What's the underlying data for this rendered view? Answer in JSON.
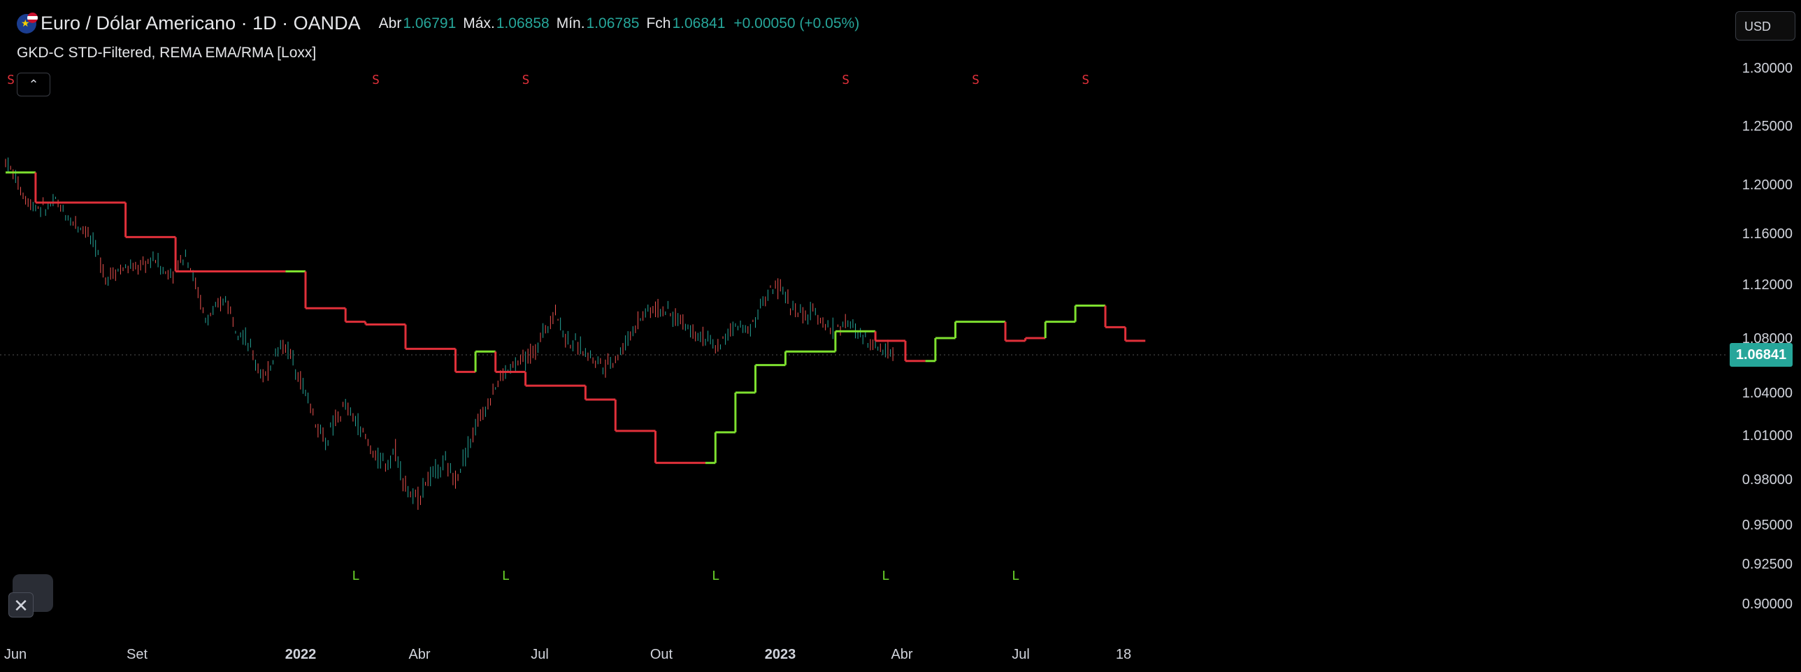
{
  "header": {
    "symbol": "Euro / Dólar Americano · 1D · OANDA",
    "ohlc": [
      {
        "label": "Abr",
        "value": "1.06791"
      },
      {
        "label": "Máx.",
        "value": "1.06858"
      },
      {
        "label": "Mín.",
        "value": "1.06785"
      },
      {
        "label": "Fch",
        "value": "1.06841"
      }
    ],
    "change": "+0.00050 (+0.05%)"
  },
  "indicator": {
    "name": "GKD-C STD-Filtered, REMA EMA/RMA [Loxx]"
  },
  "toolbar": {
    "collapse_icon": "chevron-up-icon",
    "currency": "USD",
    "close_icon": "close-icon"
  },
  "colors": {
    "up": "#26a69a",
    "down": "#ef5350",
    "rema_up": "#7ee02f",
    "rema_down": "#e0303a",
    "bg": "#000000"
  },
  "last_price": "1.06841",
  "chart_data": {
    "type": "line",
    "y_axis_ticks": [
      "1.30000",
      "1.25000",
      "1.20000",
      "1.16000",
      "1.12000",
      "1.08000",
      "1.04000",
      "1.01000",
      "0.98000",
      "0.95000",
      "0.92500",
      "0.90000"
    ],
    "x_axis_ticks": [
      "Jun",
      "Set",
      "2022",
      "Abr",
      "Jul",
      "Out",
      "2023",
      "Abr",
      "Jul",
      "18"
    ],
    "price_series": {
      "name": "",
      "points": [
        [
          0,
          1.22
        ],
        [
          0.5,
          1.213
        ],
        [
          1,
          1.205
        ],
        [
          2,
          1.188
        ],
        [
          3,
          1.182
        ],
        [
          4,
          1.18
        ],
        [
          5,
          1.186
        ],
        [
          6,
          1.175
        ],
        [
          7,
          1.168
        ],
        [
          8,
          1.163
        ],
        [
          9,
          1.148
        ],
        [
          10,
          1.125
        ],
        [
          11,
          1.13
        ],
        [
          12,
          1.133
        ],
        [
          13,
          1.132
        ],
        [
          14,
          1.136
        ],
        [
          15,
          1.14
        ],
        [
          16,
          1.128
        ],
        [
          17,
          1.132
        ],
        [
          18,
          1.145
        ],
        [
          19,
          1.12
        ],
        [
          20,
          1.093
        ],
        [
          21,
          1.1
        ],
        [
          22,
          1.11
        ],
        [
          23,
          1.09
        ],
        [
          24,
          1.08
        ],
        [
          25,
          1.062
        ],
        [
          26,
          1.05
        ],
        [
          27,
          1.07
        ],
        [
          28,
          1.075
        ],
        [
          29,
          1.06
        ],
        [
          30,
          1.04
        ],
        [
          31,
          1.02
        ],
        [
          32,
          1.005
        ],
        [
          33,
          1.02
        ],
        [
          34,
          1.03
        ],
        [
          35,
          1.02
        ],
        [
          36,
          1.008
        ],
        [
          37,
          0.995
        ],
        [
          38,
          0.99
        ],
        [
          39,
          1.0
        ],
        [
          40,
          0.975
        ],
        [
          41,
          0.965
        ],
        [
          42,
          0.978
        ],
        [
          43,
          0.985
        ],
        [
          44,
          0.99
        ],
        [
          45,
          0.98
        ],
        [
          46,
          0.998
        ],
        [
          47,
          1.015
        ],
        [
          48,
          1.03
        ],
        [
          49,
          1.045
        ],
        [
          50,
          1.055
        ],
        [
          51,
          1.06
        ],
        [
          52,
          1.065
        ],
        [
          53,
          1.07
        ],
        [
          54,
          1.088
        ],
        [
          55,
          1.1
        ],
        [
          56,
          1.08
        ],
        [
          57,
          1.075
        ],
        [
          58,
          1.07
        ],
        [
          59,
          1.064
        ],
        [
          60,
          1.06
        ],
        [
          61,
          1.065
        ],
        [
          62,
          1.075
        ],
        [
          63,
          1.09
        ],
        [
          64,
          1.1
        ],
        [
          65,
          1.102
        ],
        [
          66,
          1.1
        ],
        [
          67,
          1.095
        ],
        [
          68,
          1.09
        ],
        [
          69,
          1.085
        ],
        [
          70,
          1.08
        ],
        [
          71,
          1.072
        ],
        [
          72,
          1.08
        ],
        [
          73,
          1.09
        ],
        [
          74,
          1.085
        ],
        [
          75,
          1.095
        ],
        [
          76,
          1.11
        ],
        [
          77,
          1.118
        ],
        [
          78,
          1.112
        ],
        [
          79,
          1.1
        ],
        [
          80,
          1.095
        ],
        [
          81,
          1.1
        ],
        [
          82,
          1.09
        ],
        [
          83,
          1.085
        ],
        [
          84,
          1.092
        ],
        [
          85,
          1.085
        ],
        [
          86,
          1.08
        ],
        [
          87,
          1.075
        ],
        [
          88,
          1.072
        ],
        [
          89,
          1.068
        ]
      ]
    },
    "rema_series": {
      "name": "",
      "steps": [
        {
          "x0": 0,
          "x1": 3,
          "y": 1.21,
          "color": "green"
        },
        {
          "x0": 3,
          "x1": 12,
          "y": 1.185,
          "color": "red"
        },
        {
          "x0": 12,
          "x1": 17,
          "y": 1.157,
          "color": "red"
        },
        {
          "x0": 17,
          "x1": 28,
          "y": 1.13,
          "color": "red"
        },
        {
          "x0": 28,
          "x1": 30,
          "y": 1.13,
          "color": "green"
        },
        {
          "x0": 30,
          "x1": 34,
          "y": 1.102,
          "color": "red"
        },
        {
          "x0": 34,
          "x1": 36,
          "y": 1.092,
          "color": "red"
        },
        {
          "x0": 36,
          "x1": 40,
          "y": 1.09,
          "color": "red"
        },
        {
          "x0": 40,
          "x1": 45,
          "y": 1.072,
          "color": "red"
        },
        {
          "x0": 45,
          "x1": 47,
          "y": 1.055,
          "color": "red"
        },
        {
          "x0": 47,
          "x1": 49,
          "y": 1.07,
          "color": "green"
        },
        {
          "x0": 49,
          "x1": 52,
          "y": 1.055,
          "color": "red"
        },
        {
          "x0": 52,
          "x1": 58,
          "y": 1.045,
          "color": "red"
        },
        {
          "x0": 58,
          "x1": 61,
          "y": 1.035,
          "color": "red"
        },
        {
          "x0": 61,
          "x1": 65,
          "y": 1.013,
          "color": "red"
        },
        {
          "x0": 65,
          "x1": 70,
          "y": 0.991,
          "color": "red"
        },
        {
          "x0": 70,
          "x1": 71,
          "y": 0.991,
          "color": "green"
        },
        {
          "x0": 71,
          "x1": 73,
          "y": 1.012,
          "color": "green"
        },
        {
          "x0": 73,
          "x1": 75,
          "y": 1.04,
          "color": "green"
        },
        {
          "x0": 75,
          "x1": 78,
          "y": 1.06,
          "color": "green"
        },
        {
          "x0": 78,
          "x1": 83,
          "y": 1.07,
          "color": "green"
        },
        {
          "x0": 83,
          "x1": 87,
          "y": 1.085,
          "color": "green"
        },
        {
          "x0": 87,
          "x1": 90,
          "y": 1.078,
          "color": "red"
        },
        {
          "x0": 90,
          "x1": 92,
          "y": 1.063,
          "color": "red"
        },
        {
          "x0": 92,
          "x1": 93,
          "y": 1.063,
          "color": "green"
        },
        {
          "x0": 93,
          "x1": 95,
          "y": 1.08,
          "color": "green"
        },
        {
          "x0": 95,
          "x1": 100,
          "y": 1.092,
          "color": "green"
        },
        {
          "x0": 100,
          "x1": 102,
          "y": 1.078,
          "color": "red"
        },
        {
          "x0": 102,
          "x1": 104,
          "y": 1.08,
          "color": "red"
        },
        {
          "x0": 104,
          "x1": 107,
          "y": 1.092,
          "color": "green"
        },
        {
          "x0": 107,
          "x1": 110,
          "y": 1.104,
          "color": "green"
        },
        {
          "x0": 110,
          "x1": 112,
          "y": 1.088,
          "color": "red"
        },
        {
          "x0": 112,
          "x1": 114,
          "y": 1.078,
          "color": "red"
        }
      ]
    },
    "signals": {
      "short_label": "S",
      "long_label": "L",
      "shorts": [
        0.5,
        37,
        52,
        84,
        97,
        108
      ],
      "longs": [
        35,
        50,
        71,
        88,
        101
      ]
    }
  }
}
